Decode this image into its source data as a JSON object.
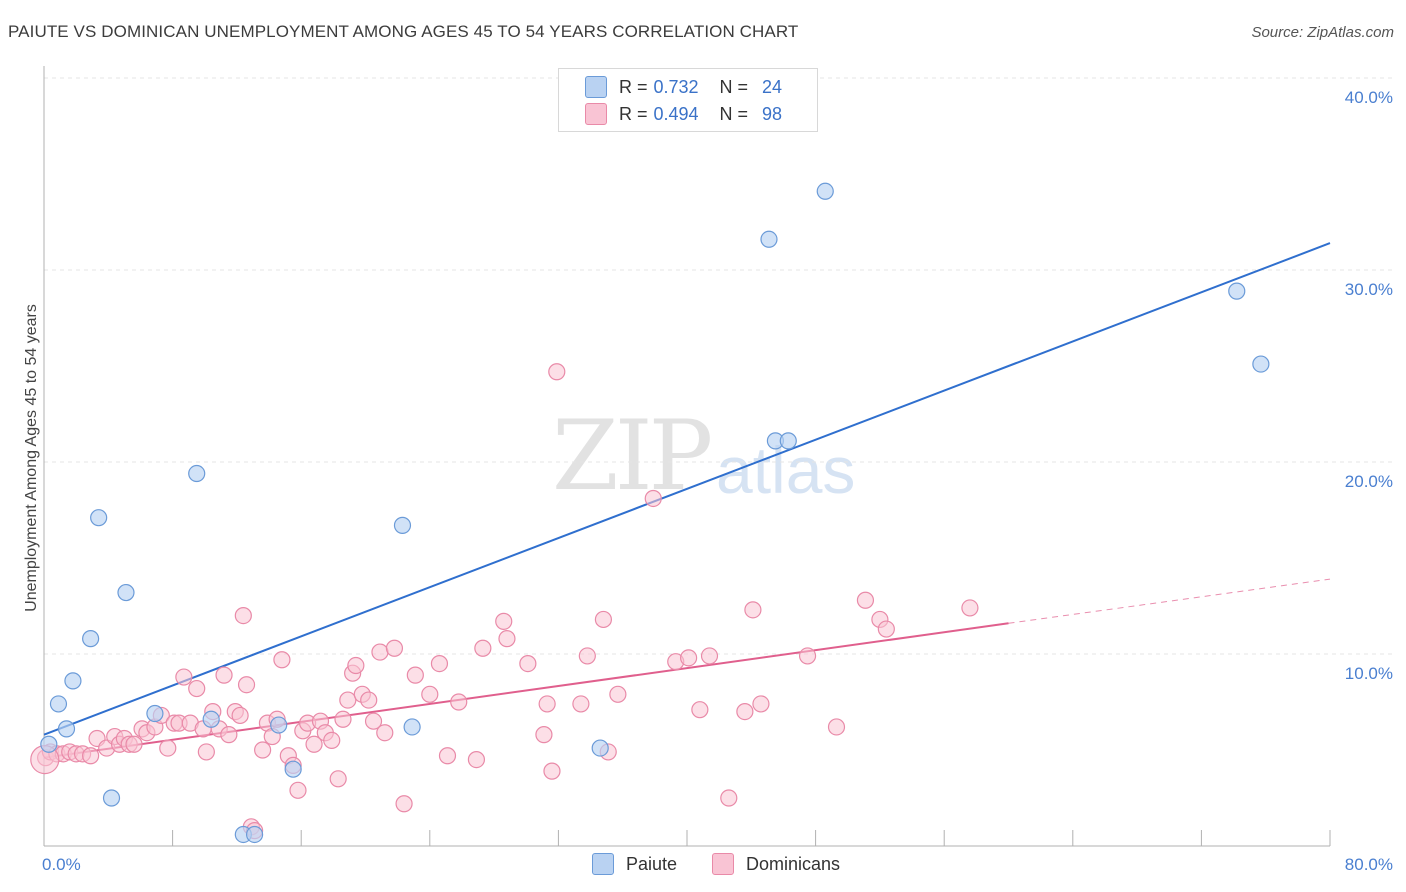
{
  "title": "PAIUTE VS DOMINICAN UNEMPLOYMENT AMONG AGES 45 TO 54 YEARS CORRELATION CHART",
  "source": "Source: ZipAtlas.com",
  "watermark": {
    "part1": "ZIP",
    "part2": "atlas"
  },
  "legend": {
    "r_label": "R =",
    "n_label": "N =",
    "paiute": {
      "r": "0.732",
      "n": "24"
    },
    "dominicans": {
      "r": "0.494",
      "n": "98"
    }
  },
  "bottom_legend": {
    "paiute": "Paiute",
    "dominicans": "Dominicans"
  },
  "colors": {
    "paiute_fill": "#b9d2f2",
    "paiute_stroke": "#6b9bd8",
    "paiute_line": "#2f6fce",
    "dom_fill": "#f9c4d4",
    "dom_stroke": "#e98aa8",
    "dom_line": "#e05f8d"
  },
  "chart_data": {
    "type": "scatter",
    "xlabel": "",
    "ylabel": "Unemployment Among Ages 45 to 54 years",
    "xlim": [
      0,
      80
    ],
    "ylim": [
      0,
      40
    ],
    "x_tick_labels": [
      {
        "value": 0,
        "label": "0.0%"
      },
      {
        "value": 80,
        "label": "80.0%"
      }
    ],
    "y_tick_labels": [
      {
        "value": 10,
        "label": "10.0%"
      },
      {
        "value": 20,
        "label": "20.0%"
      },
      {
        "value": 30,
        "label": "30.0%"
      },
      {
        "value": 40,
        "label": "40.0%"
      }
    ],
    "series": [
      {
        "name": "Paiute",
        "points": [
          [
            0.3,
            5.3
          ],
          [
            0.9,
            7.4
          ],
          [
            1.4,
            6.1
          ],
          [
            1.8,
            8.6
          ],
          [
            2.9,
            10.8
          ],
          [
            3.4,
            17.1
          ],
          [
            4.2,
            2.5
          ],
          [
            5.1,
            13.2
          ],
          [
            6.9,
            6.9
          ],
          [
            9.5,
            19.4
          ],
          [
            10.4,
            6.6
          ],
          [
            12.4,
            0.6
          ],
          [
            13.1,
            0.6
          ],
          [
            14.6,
            6.3
          ],
          [
            15.5,
            4.0
          ],
          [
            22.3,
            16.7
          ],
          [
            22.9,
            6.2
          ],
          [
            34.6,
            5.1
          ],
          [
            45.1,
            31.6
          ],
          [
            45.5,
            21.1
          ],
          [
            46.3,
            21.1
          ],
          [
            48.6,
            34.1
          ],
          [
            74.2,
            28.9
          ],
          [
            75.7,
            25.1
          ]
        ],
        "trend": {
          "x": [
            0,
            80
          ],
          "y": [
            5.8,
            31.4
          ]
        }
      },
      {
        "name": "Dominicans",
        "points": [
          [
            0.1,
            4.6
          ],
          [
            0.4,
            4.9
          ],
          [
            0.8,
            4.8
          ],
          [
            1.2,
            4.8
          ],
          [
            1.6,
            4.9
          ],
          [
            2.0,
            4.8
          ],
          [
            2.4,
            4.8
          ],
          [
            2.9,
            4.7
          ],
          [
            3.3,
            5.6
          ],
          [
            3.9,
            5.1
          ],
          [
            4.4,
            5.7
          ],
          [
            4.7,
            5.3
          ],
          [
            5.0,
            5.6
          ],
          [
            5.3,
            5.3
          ],
          [
            5.6,
            5.3
          ],
          [
            6.1,
            6.1
          ],
          [
            6.4,
            5.9
          ],
          [
            6.9,
            6.2
          ],
          [
            7.3,
            6.8
          ],
          [
            7.7,
            5.1
          ],
          [
            8.1,
            6.4
          ],
          [
            8.4,
            6.4
          ],
          [
            8.7,
            8.8
          ],
          [
            9.1,
            6.4
          ],
          [
            9.5,
            8.2
          ],
          [
            9.9,
            6.1
          ],
          [
            10.1,
            4.9
          ],
          [
            10.5,
            7.0
          ],
          [
            10.9,
            6.1
          ],
          [
            11.2,
            8.9
          ],
          [
            11.5,
            5.8
          ],
          [
            11.9,
            7.0
          ],
          [
            12.2,
            6.8
          ],
          [
            12.4,
            12.0
          ],
          [
            12.6,
            8.4
          ],
          [
            12.9,
            1.0
          ],
          [
            13.1,
            0.8
          ],
          [
            13.6,
            5.0
          ],
          [
            13.9,
            6.4
          ],
          [
            14.2,
            5.7
          ],
          [
            14.5,
            6.6
          ],
          [
            14.8,
            9.7
          ],
          [
            15.2,
            4.7
          ],
          [
            15.5,
            4.2
          ],
          [
            15.8,
            2.9
          ],
          [
            16.1,
            6.0
          ],
          [
            16.4,
            6.4
          ],
          [
            16.8,
            5.3
          ],
          [
            17.2,
            6.5
          ],
          [
            17.5,
            5.9
          ],
          [
            17.9,
            5.5
          ],
          [
            18.3,
            3.5
          ],
          [
            18.6,
            6.6
          ],
          [
            18.9,
            7.6
          ],
          [
            19.2,
            9.0
          ],
          [
            19.4,
            9.4
          ],
          [
            19.8,
            7.9
          ],
          [
            20.2,
            7.6
          ],
          [
            20.5,
            6.5
          ],
          [
            20.9,
            10.1
          ],
          [
            21.2,
            5.9
          ],
          [
            21.8,
            10.3
          ],
          [
            22.4,
            2.2
          ],
          [
            23.1,
            8.9
          ],
          [
            24.0,
            7.9
          ],
          [
            24.6,
            9.5
          ],
          [
            25.1,
            4.7
          ],
          [
            25.8,
            7.5
          ],
          [
            26.9,
            4.5
          ],
          [
            27.3,
            10.3
          ],
          [
            28.6,
            11.7
          ],
          [
            28.8,
            10.8
          ],
          [
            30.1,
            9.5
          ],
          [
            31.1,
            5.8
          ],
          [
            31.3,
            7.4
          ],
          [
            31.6,
            3.9
          ],
          [
            31.9,
            24.7
          ],
          [
            33.4,
            7.4
          ],
          [
            33.8,
            9.9
          ],
          [
            34.8,
            11.8
          ],
          [
            35.1,
            4.9
          ],
          [
            35.7,
            7.9
          ],
          [
            37.9,
            18.1
          ],
          [
            39.3,
            9.6
          ],
          [
            40.1,
            9.8
          ],
          [
            40.8,
            7.1
          ],
          [
            41.4,
            9.9
          ],
          [
            42.6,
            2.5
          ],
          [
            43.6,
            7.0
          ],
          [
            44.1,
            12.3
          ],
          [
            44.6,
            7.4
          ],
          [
            47.5,
            9.9
          ],
          [
            49.3,
            6.2
          ],
          [
            51.1,
            12.8
          ],
          [
            52.0,
            11.8
          ],
          [
            52.4,
            11.3
          ],
          [
            57.6,
            12.4
          ],
          [
            0.05,
            4.5
          ]
        ],
        "trend": {
          "x": [
            0,
            60
          ],
          "y": [
            4.6,
            11.6
          ]
        },
        "trend_extension": {
          "x": [
            60,
            80
          ],
          "y": [
            11.6,
            13.9
          ]
        }
      }
    ]
  }
}
